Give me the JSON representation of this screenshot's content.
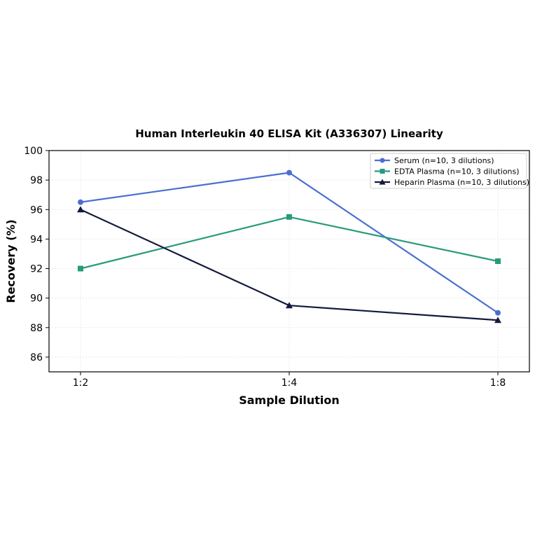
{
  "chart_data": {
    "type": "line",
    "title": "Human Interleukin 40 ELISA Kit (A336307) Linearity",
    "xlabel": "Sample Dilution",
    "ylabel": "Recovery (%)",
    "categories": [
      "1:2",
      "1:4",
      "1:8"
    ],
    "ylim": [
      85,
      100
    ],
    "yticks": [
      86,
      88,
      90,
      92,
      94,
      96,
      98,
      100
    ],
    "grid": true,
    "legend_position": "top-right",
    "series": [
      {
        "name": "Serum (n=10, 3 dilutions)",
        "values": [
          96.5,
          98.5,
          89.0
        ],
        "color": "#4a6fd1",
        "marker": "circle"
      },
      {
        "name": "EDTA Plasma (n=10, 3 dilutions)",
        "values": [
          92.0,
          95.5,
          92.5
        ],
        "color": "#279b7b",
        "marker": "square"
      },
      {
        "name": "Heparin Plasma (n=10, 3 dilutions)",
        "values": [
          96.0,
          89.5,
          88.5
        ],
        "color": "#131a3d",
        "marker": "triangle"
      }
    ]
  }
}
